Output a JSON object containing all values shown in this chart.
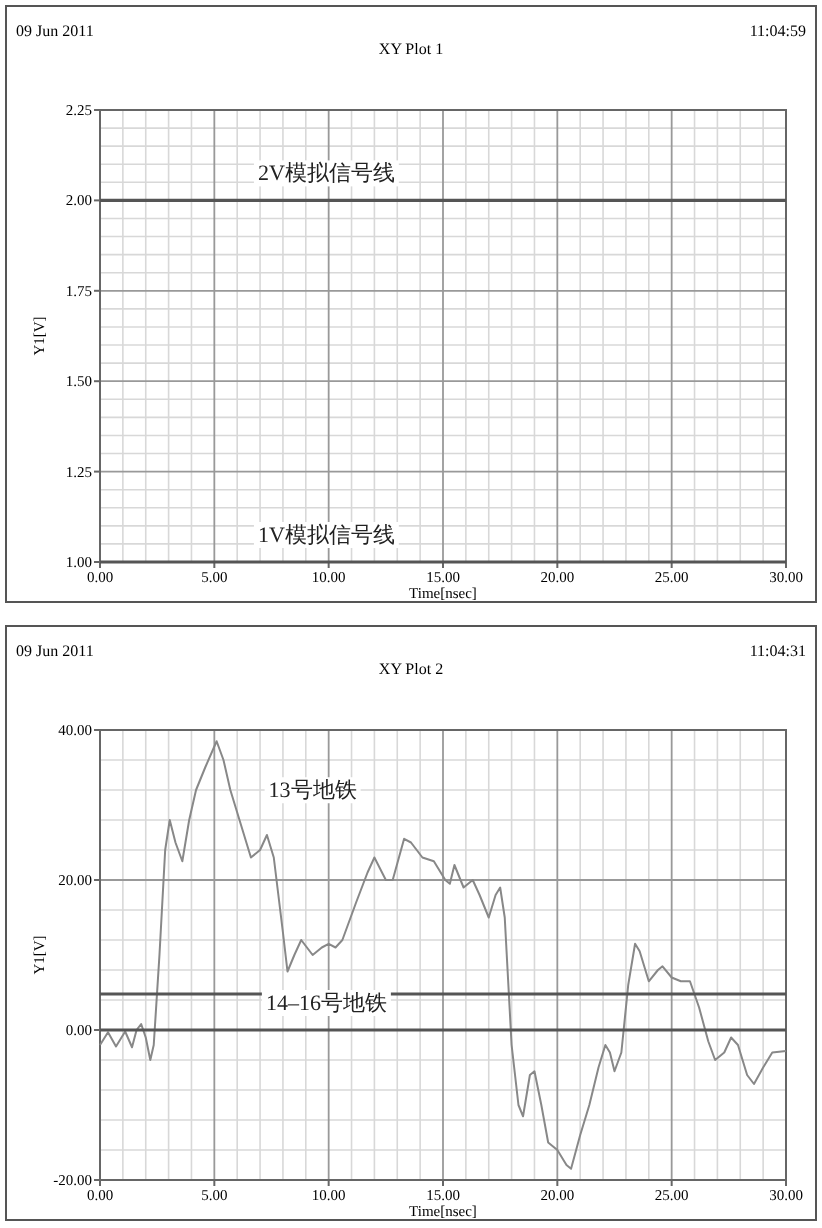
{
  "chart_data": [
    {
      "type": "line",
      "title": "XY Plot 1",
      "annotations": [
        "09 Jun 2011",
        "11:04:59"
      ],
      "xlabel": "Time[nsec]",
      "ylabel": "Y1[V]",
      "xlim": [
        0,
        30
      ],
      "xticks": [
        {
          "value": 0,
          "label": "0.00"
        },
        {
          "value": 5,
          "label": "5.00"
        },
        {
          "value": 10,
          "label": "10.00"
        },
        {
          "value": 15,
          "label": "15.00"
        },
        {
          "value": 20,
          "label": "20.00"
        },
        {
          "value": 25,
          "label": "25.00"
        },
        {
          "value": 30,
          "label": "30.00"
        }
      ],
      "ylim": [
        1,
        2.25
      ],
      "yticks": [
        {
          "value": 1,
          "label": "1.00"
        },
        {
          "value": 1.25,
          "label": "1.25"
        },
        {
          "value": 1.5,
          "label": "1.50"
        },
        {
          "value": 1.75,
          "label": "1.75"
        },
        {
          "value": 2,
          "label": "2.00"
        },
        {
          "value": 2.25,
          "label": "2.25"
        }
      ],
      "grid": true,
      "series": [
        {
          "name": "2V模拟信号线",
          "color": "#555555",
          "x": [
            0,
            30
          ],
          "values": [
            2,
            2
          ]
        },
        {
          "name": "1V模拟信号线",
          "color": "#555555",
          "x": [
            0,
            30
          ],
          "values": [
            1,
            1
          ]
        }
      ]
    },
    {
      "type": "line",
      "title": "XY Plot 2",
      "annotations": [
        "09 Jun 2011",
        "11:04:31"
      ],
      "xlabel": "Time[nsec]",
      "ylabel": "Y1[V]",
      "xlim": [
        0,
        30
      ],
      "xticks": [
        {
          "value": 0,
          "label": "0.00"
        },
        {
          "value": 5,
          "label": "5.00"
        },
        {
          "value": 10,
          "label": "10.00"
        },
        {
          "value": 15,
          "label": "15.00"
        },
        {
          "value": 20,
          "label": "20.00"
        },
        {
          "value": 25,
          "label": "25.00"
        },
        {
          "value": 30,
          "label": "30.00"
        }
      ],
      "ylim": [
        -20,
        40
      ],
      "yticks": [
        {
          "value": -20,
          "label": "-20.00"
        },
        {
          "value": 0,
          "label": "0.00"
        },
        {
          "value": 20,
          "label": "20.00"
        },
        {
          "value": 40,
          "label": "40.00"
        }
      ],
      "grid": true,
      "series": [
        {
          "name": "13号地铁",
          "color": "#888888",
          "x": [
            0,
            0.35,
            0.7,
            1.1,
            1.4,
            1.6,
            1.8,
            2.0,
            2.2,
            2.35,
            2.6,
            2.85,
            3.05,
            3.3,
            3.6,
            3.9,
            4.2,
            4.6,
            5.1,
            5.4,
            5.7,
            6.2,
            6.6,
            7.0,
            7.3,
            7.6,
            8.0,
            8.2,
            8.5,
            8.8,
            9.3,
            9.7,
            10.0,
            10.3,
            10.6,
            11.2,
            11.7,
            12.0,
            12.5,
            12.8,
            13.3,
            13.6,
            14.1,
            14.6,
            15.1,
            15.3,
            15.5,
            15.9,
            16.3,
            16.6,
            17.0,
            17.3,
            17.5,
            17.7,
            18.0,
            18.3,
            18.5,
            18.8,
            19.0,
            19.3,
            19.6,
            20.0,
            20.4,
            20.6,
            21.0,
            21.4,
            21.8,
            22.1,
            22.3,
            22.5,
            22.8,
            23.1,
            23.4,
            23.6,
            24.0,
            24.4,
            24.6,
            25.0,
            25.4,
            25.8,
            26.2,
            26.6,
            26.9,
            27.3,
            27.6,
            27.9,
            28.3,
            28.6,
            29.0,
            29.4,
            30
          ],
          "values": [
            -2,
            -0.3,
            -2.2,
            -0.2,
            -2.3,
            0,
            0.8,
            -1,
            -4,
            -2,
            10,
            24,
            28,
            25,
            22.5,
            28,
            32,
            35,
            38.5,
            36,
            32,
            27,
            23,
            24,
            26,
            23,
            13,
            7.8,
            10,
            12,
            10,
            11,
            11.5,
            11,
            12,
            17,
            21,
            23,
            20,
            20,
            25.5,
            25,
            23,
            22.5,
            20,
            19.5,
            22,
            19,
            20,
            18,
            15,
            18,
            19,
            15,
            -2,
            -10,
            -11.5,
            -6,
            -5.5,
            -10,
            -15,
            -16,
            -18,
            -18.5,
            -14,
            -10,
            -5,
            -2,
            -3,
            -5.5,
            -3,
            6,
            11.5,
            10.5,
            6.5,
            8,
            8.5,
            7,
            6.5,
            6.5,
            3,
            -1.5,
            -4,
            -3,
            -1,
            -2,
            -6,
            -7.2,
            -5,
            -3,
            -2.8
          ]
        },
        {
          "color": "#555555",
          "x": [
            0,
            30
          ],
          "values": [
            4.8,
            4.8
          ]
        },
        {
          "name": "14–16号地铁",
          "color": "#555555",
          "x": [
            0,
            30
          ],
          "values": [
            0,
            0
          ]
        }
      ]
    }
  ]
}
